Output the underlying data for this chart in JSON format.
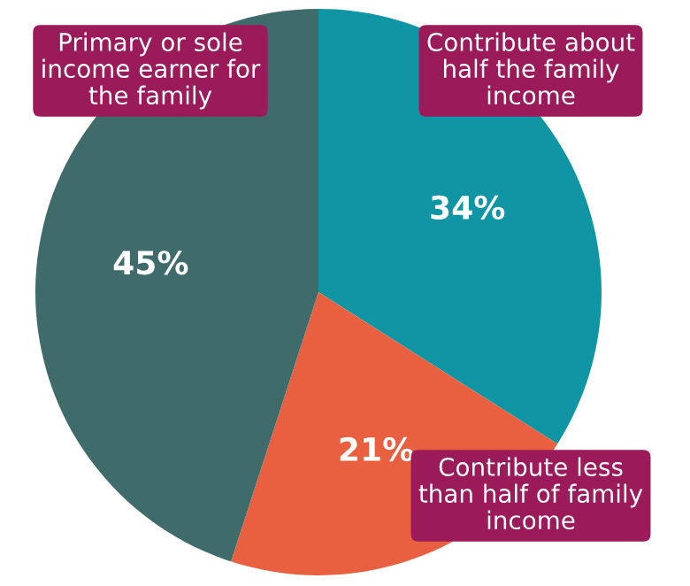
{
  "chart_data": {
    "type": "pie",
    "categories": [
      "Contribute about\nhalf the family\nincome",
      "Contribute less\nthan half of family\nincome",
      "Primary or sole\nincome earner for\nthe family"
    ],
    "values": [
      34,
      21,
      45
    ],
    "colors": [
      "#0f95a3",
      "#e8603f",
      "#3f6b6b"
    ],
    "value_labels": [
      "34%",
      "21%",
      "45%"
    ],
    "legend": false
  }
}
